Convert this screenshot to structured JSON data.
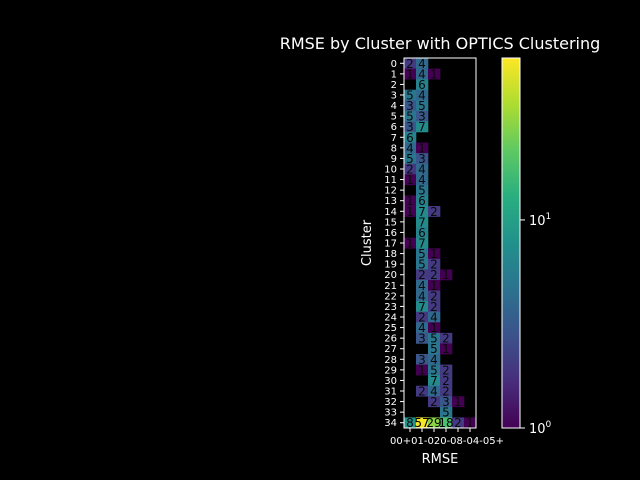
{
  "figure": {
    "background": "#000000",
    "foreground": "#ffffff"
  },
  "chart_data": {
    "type": "heatmap",
    "title": "RMSE by Cluster with OPTICS Clustering",
    "xlabel": "RMSE",
    "ylabel": "Cluster",
    "x_categories": [
      "0-1",
      "1-2",
      "2-3",
      "3-4",
      "4-5",
      "5+"
    ],
    "x_tick_labels_as_printed": "00+01-020-08-04-05+",
    "y_categories": [
      "0",
      "1",
      "2",
      "3",
      "4",
      "5",
      "6",
      "7",
      "8",
      "9",
      "10",
      "11",
      "12",
      "13",
      "14",
      "15",
      "16",
      "17",
      "18",
      "19",
      "20",
      "21",
      "22",
      "23",
      "24",
      "25",
      "26",
      "27",
      "28",
      "29",
      "30",
      "31",
      "32",
      "33",
      "34"
    ],
    "colormap": "viridis",
    "color_scale": "log",
    "colorbar": {
      "range": [
        1,
        60
      ],
      "tick_labels": [
        "10^0",
        "10^1"
      ],
      "tick_values": [
        1,
        10
      ]
    },
    "values": [
      [
        2,
        4,
        0,
        0,
        0,
        0
      ],
      [
        1,
        4,
        1,
        0,
        0,
        0
      ],
      [
        0,
        6,
        0,
        0,
        0,
        0
      ],
      [
        5,
        4,
        0,
        0,
        0,
        0
      ],
      [
        3,
        5,
        0,
        0,
        0,
        0
      ],
      [
        5,
        3,
        0,
        0,
        0,
        0
      ],
      [
        3,
        7,
        0,
        0,
        0,
        0
      ],
      [
        6,
        0,
        0,
        0,
        0,
        0
      ],
      [
        4,
        1,
        0,
        0,
        0,
        0
      ],
      [
        5,
        3,
        0,
        0,
        0,
        0
      ],
      [
        2,
        4,
        0,
        0,
        0,
        0
      ],
      [
        1,
        4,
        0,
        0,
        0,
        0
      ],
      [
        0,
        5,
        0,
        0,
        0,
        0
      ],
      [
        1,
        6,
        0,
        0,
        0,
        0
      ],
      [
        1,
        7,
        2,
        0,
        0,
        0
      ],
      [
        0,
        7,
        0,
        0,
        0,
        0
      ],
      [
        0,
        6,
        0,
        0,
        0,
        0
      ],
      [
        1,
        7,
        0,
        0,
        0,
        0
      ],
      [
        0,
        5,
        1,
        0,
        0,
        0
      ],
      [
        0,
        5,
        2,
        0,
        0,
        0
      ],
      [
        0,
        2,
        2,
        1,
        0,
        0
      ],
      [
        0,
        4,
        1,
        0,
        0,
        0
      ],
      [
        0,
        4,
        2,
        0,
        0,
        0
      ],
      [
        0,
        7,
        2,
        0,
        0,
        0
      ],
      [
        0,
        2,
        4,
        0,
        0,
        0
      ],
      [
        0,
        4,
        1,
        0,
        0,
        0
      ],
      [
        0,
        3,
        5,
        2,
        0,
        0
      ],
      [
        0,
        0,
        5,
        1,
        0,
        0
      ],
      [
        0,
        3,
        4,
        0,
        0,
        0
      ],
      [
        0,
        1,
        5,
        2,
        0,
        0
      ],
      [
        0,
        0,
        7,
        2,
        0,
        0
      ],
      [
        0,
        2,
        4,
        2,
        0,
        0
      ],
      [
        0,
        0,
        2,
        3,
        1,
        0
      ],
      [
        0,
        0,
        0,
        5,
        0,
        0
      ],
      [
        8,
        57,
        29,
        18,
        2,
        1
      ]
    ]
  }
}
